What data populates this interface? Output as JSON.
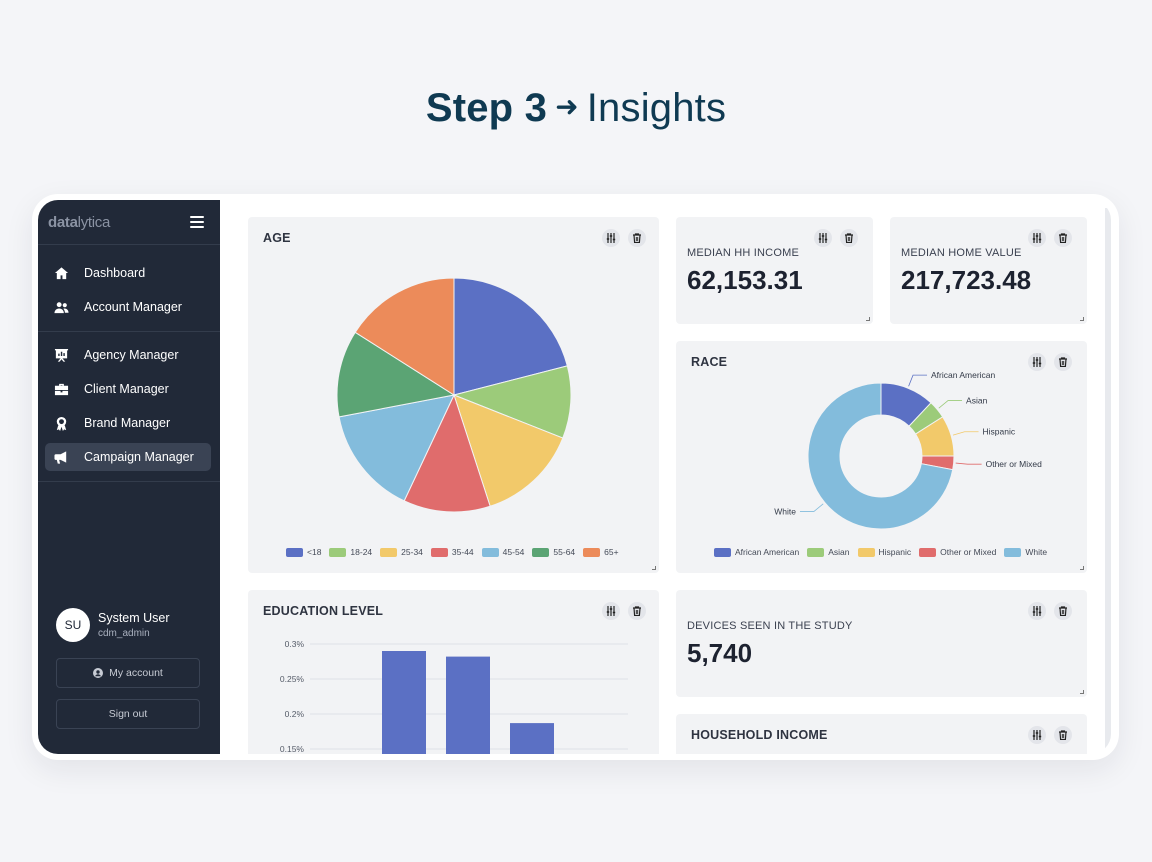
{
  "heading": {
    "step": "Step 3",
    "arrow": "➜",
    "label": "Insights"
  },
  "sidebar": {
    "brand_a": "data",
    "brand_b": "lytica",
    "items": [
      {
        "label": "Dashboard",
        "icon": "home-icon"
      },
      {
        "label": "Account Manager",
        "icon": "users-icon"
      },
      {
        "label": "Agency Manager",
        "icon": "presentation-icon"
      },
      {
        "label": "Client Manager",
        "icon": "briefcase-icon"
      },
      {
        "label": "Brand Manager",
        "icon": "award-icon"
      },
      {
        "label": "Campaign Manager",
        "icon": "megaphone-icon",
        "active": true
      }
    ],
    "user": {
      "initials": "SU",
      "name": "System User",
      "handle": "cdm_admin"
    },
    "my_account": "My account",
    "sign_out": "Sign out"
  },
  "cards": {
    "age": {
      "title": "AGE"
    },
    "median_hh_income": {
      "label": "MEDIAN HH INCOME",
      "value": "62,153.31"
    },
    "median_home_value": {
      "label": "MEDIAN HOME VALUE",
      "value": "217,723.48"
    },
    "race": {
      "title": "RACE"
    },
    "education": {
      "title": "EDUCATION LEVEL"
    },
    "devices": {
      "label": "DEVICES SEEN IN THE STUDY",
      "value": "5,740"
    },
    "household_income": {
      "title": "HOUSEHOLD INCOME"
    }
  },
  "colors": {
    "blue": "#5b70c4",
    "green": "#9ccb7a",
    "yellow": "#f2c96a",
    "red": "#e06c6c",
    "lightblue": "#83bcdc",
    "darkgreen": "#5ba474",
    "orange": "#ec8b5a"
  },
  "chart_data": [
    {
      "type": "pie",
      "title": "AGE",
      "categories": [
        "<18",
        "18-24",
        "25-34",
        "35-44",
        "45-54",
        "55-64",
        "65+"
      ],
      "values": [
        21,
        10,
        14,
        12,
        15,
        12,
        16
      ],
      "colors": [
        "#5b70c4",
        "#9ccb7a",
        "#f2c96a",
        "#e06c6c",
        "#83bcdc",
        "#5ba474",
        "#ec8b5a"
      ],
      "legend": "bottom"
    },
    {
      "type": "pie",
      "title": "RACE",
      "categories": [
        "African American",
        "Asian",
        "Hispanic",
        "Other or Mixed",
        "White"
      ],
      "values": [
        12,
        4,
        9,
        3,
        72
      ],
      "colors": [
        "#5b70c4",
        "#9ccb7a",
        "#f2c96a",
        "#e06c6c",
        "#83bcdc"
      ],
      "donut": true,
      "legend": "bottom"
    },
    {
      "type": "bar",
      "title": "EDUCATION LEVEL",
      "values": [
        0.29,
        0.282,
        0.187
      ],
      "y_ticks": [
        "0.3%",
        "0.25%",
        "0.2%",
        "0.15%"
      ],
      "ylim": [
        0.15,
        0.3
      ],
      "grid": true
    }
  ]
}
